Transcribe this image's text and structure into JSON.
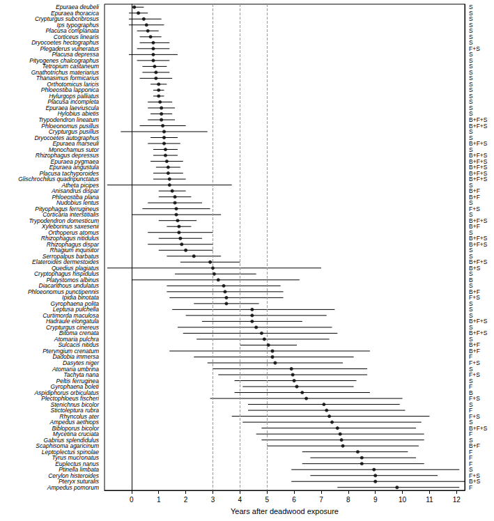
{
  "chart_data": {
    "type": "scatter",
    "xlabel": "Years after deadwood exposure",
    "xlim": [
      -1,
      12.3
    ],
    "xticks": [
      0,
      1,
      2,
      3,
      4,
      5,
      6,
      7,
      8,
      9,
      10,
      11,
      12
    ],
    "vlines": [
      3,
      4,
      5
    ],
    "color": "#000000",
    "grid": false,
    "marker": "circle",
    "categories": [
      "Epuraea deubeli",
      "Epuraea thoracica",
      "Crypturgus subcribrosus",
      "Ips typographus",
      "Placusa complanata",
      "Corticeus linearis",
      "Dryocoetes hectographus",
      "Plegaderus vulneratus",
      "Placusa depressa",
      "Pityogenes chalcographus",
      "Tetropium castaneum",
      "Gnathotrichus materiarius",
      "Thanasimus formicarius",
      "Orthotomicus laricis",
      "Phloeostiba lapponica",
      "Hylurgops palliatus",
      "Placusa incompleta",
      "Epuraea laeviuscula",
      "Hylobius abietis",
      "Trypodendron lineatum",
      "Phloeonomus pusillus",
      "Crypturgus pusillus",
      "Dryocoetes autographus",
      "Epuraea marseuli",
      "Monochamus sutor",
      "Rhizophagus depressus",
      "Epuraea pygmaea",
      "Epuraea angustula",
      "Placusa tachyporoides",
      "Glischrochilus quadripunctatus",
      "Atheta picipes",
      "Anisandrus dispar",
      "Phloeostiba plana",
      "Nudobius lentus",
      "Pityophagus ferrugineus",
      "Corticaria interstitialis",
      "Trypodendron domesticum",
      "Xyleborinus saxesenii",
      "Orthoperus atomus",
      "Rhizophagus nitidulus",
      "Rhizophagus dispar",
      "Rhagium inquisitor",
      "Serropalpus barbatus",
      "Elateroides dermestoides",
      "Quedius plagiatus",
      "Cryptophagus hispidulus",
      "Platystomos albinus",
      "Diacanthous undulatus",
      "Phloeonomus punctipennis",
      "Ipidia binotata",
      "Gyrophaena polita",
      "Leptusa pulchella",
      "Curtimorda maculosa",
      "Hadraule elongatula",
      "Crypturgus cinereus",
      "Bitoma crenata",
      "Atomaria pulchra",
      "Sulcacis nitidus",
      "Pteryngium crenatum",
      "Dadobia immersa",
      "Dasytes niger",
      "Atomaria umbrina",
      "Tachyta nana",
      "Peltis ferruginea",
      "Gyrophaena boleti",
      "Aspidiphorus orbiculatus",
      "Plectophloeus fischeri",
      "Stenichnus bicolor",
      "Stictoleptura rubra",
      "Rhyncolus ater",
      "Ampedus aethiops",
      "Bibloporus bicolor",
      "Mycetina cruciata",
      "Gabrius splendidulus",
      "Scaphisoma agaricinum",
      "Leptoplectus spinolae",
      "Tyrus mucronatus",
      "Euplectus nanus",
      "Ptinella limbata",
      "Cerylon histeroides",
      "Pteryx suturalis",
      "Ampedus pomorum"
    ],
    "values": [
      0.1,
      0.25,
      0.45,
      0.55,
      0.6,
      0.7,
      0.8,
      0.8,
      0.8,
      0.8,
      0.85,
      0.9,
      0.9,
      1.0,
      1.0,
      1.0,
      1.05,
      1.1,
      1.1,
      1.1,
      1.15,
      1.2,
      1.2,
      1.2,
      1.25,
      1.25,
      1.3,
      1.35,
      1.35,
      1.4,
      1.4,
      1.5,
      1.6,
      1.6,
      1.65,
      1.65,
      1.7,
      1.75,
      1.75,
      1.8,
      1.85,
      2.0,
      2.3,
      2.9,
      3.0,
      3.05,
      3.2,
      3.4,
      3.45,
      3.5,
      3.5,
      4.45,
      4.45,
      4.45,
      4.6,
      4.8,
      4.9,
      5.05,
      5.2,
      5.2,
      5.3,
      5.9,
      5.95,
      6.0,
      6.1,
      6.3,
      6.45,
      7.1,
      7.2,
      7.3,
      7.4,
      7.6,
      7.7,
      7.75,
      7.8,
      8.35,
      8.5,
      8.5,
      8.95,
      9.0,
      9.0,
      9.8
    ],
    "lower": [
      0.0,
      -0.1,
      -0.1,
      -0.1,
      0.2,
      0.3,
      0.3,
      0.2,
      -0.1,
      0.2,
      0.4,
      0.4,
      0.3,
      0.7,
      0.8,
      0.8,
      0.6,
      0.6,
      0.7,
      0.6,
      0.3,
      -0.4,
      0.7,
      0.6,
      0.8,
      0.8,
      0.7,
      0.9,
      0.8,
      0.8,
      -0.9,
      1.0,
      1.0,
      0.6,
      0.4,
      0.0,
      1.0,
      1.3,
      0.6,
      1.0,
      0.6,
      1.0,
      1.3,
      1.8,
      -0.9,
      1.6,
      0.0,
      1.3,
      1.3,
      1.4,
      2.3,
      1.5,
      2.0,
      2.6,
      1.7,
      1.9,
      2.4,
      4.0,
      1.4,
      2.3,
      2.8,
      3.0,
      3.2,
      3.8,
      4.1,
      3.8,
      2.9,
      4.3,
      4.3,
      3.7,
      4.1,
      4.8,
      4.6,
      4.8,
      5.0,
      6.3,
      6.6,
      6.3,
      5.9,
      6.6,
      5.9,
      7.6
    ],
    "upper": [
      0.45,
      0.6,
      1.1,
      1.2,
      1.0,
      1.1,
      1.4,
      1.4,
      1.7,
      1.4,
      1.3,
      1.4,
      1.5,
      1.3,
      1.2,
      1.2,
      1.5,
      1.6,
      1.5,
      1.6,
      2.0,
      2.8,
      1.7,
      1.8,
      1.7,
      1.7,
      1.9,
      1.8,
      1.9,
      2.0,
      3.7,
      2.0,
      2.2,
      2.6,
      2.9,
      3.3,
      2.4,
      2.2,
      3.0,
      2.6,
      3.0,
      3.0,
      3.3,
      4.0,
      7.0,
      4.6,
      6.2,
      5.5,
      5.6,
      5.6,
      4.7,
      7.5,
      7.2,
      6.3,
      7.4,
      7.6,
      7.3,
      6.1,
      8.8,
      8.2,
      7.8,
      8.7,
      8.7,
      8.3,
      8.2,
      8.8,
      10.0,
      9.9,
      10.1,
      11.0,
      10.7,
      10.5,
      10.8,
      10.8,
      10.6,
      10.2,
      10.5,
      10.8,
      12.1,
      11.3,
      12.3,
      12.1
    ],
    "codes": [
      "S",
      "S",
      "S",
      "S",
      "S",
      "S",
      "S",
      "F+S",
      "S",
      "S",
      "S",
      "S",
      "S",
      "S",
      "S",
      "S",
      "S",
      "S",
      "S",
      "B+F+S",
      "B+F+S",
      "S",
      "S",
      "B+F+S",
      "S",
      "B+F+S",
      "B+F+S",
      "B+F+S",
      "B+F+S",
      "B+F+S",
      "S",
      "B+F",
      "B+F",
      "S",
      "F+S",
      "S",
      "B+F+S",
      "B+F",
      "S",
      "B+F+S",
      "B+F+S",
      "S",
      "S",
      "B+F+S",
      "B+S",
      "S",
      "B",
      "S",
      "B+F",
      "F+S",
      "S",
      "S",
      "S",
      "B+F+S",
      "S",
      "B+F+S",
      "S",
      "B+F",
      "B+F",
      "F",
      "F+S",
      "S",
      "F+S",
      "S",
      "F",
      "B",
      "F+S",
      "S",
      "F",
      "F+S",
      "S",
      "B+F+S",
      "F",
      "S",
      "B+F",
      "F",
      "F",
      "F",
      "S",
      "F+S",
      "B+S",
      "F"
    ]
  }
}
